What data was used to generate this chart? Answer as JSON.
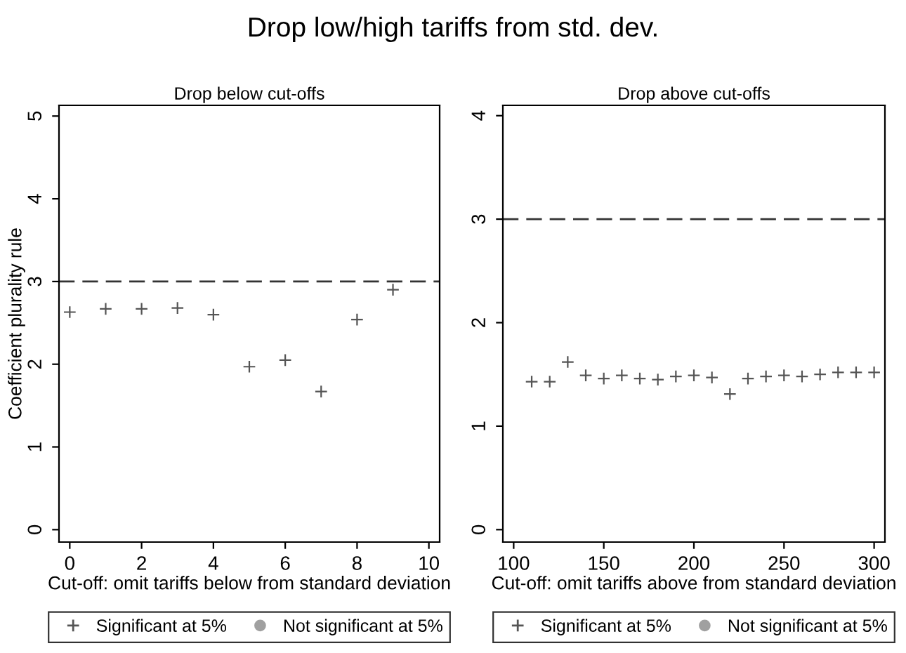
{
  "chart_data": [
    {
      "type": "other",
      "title": "Drop low/high tariffs from std. dev."
    },
    {
      "type": "scatter",
      "title": "Drop below cut-offs",
      "xlabel": "Cut-off: omit tariffs below from standard deviation",
      "ylabel": "Coefficient plurality rule",
      "xlim": [
        -0.3,
        10.3
      ],
      "xticks": [
        0,
        2,
        4,
        6,
        8,
        10
      ],
      "ylim": [
        -0.15,
        5.13
      ],
      "yticks": [
        0,
        1,
        2,
        3,
        4,
        5
      ],
      "grid": false,
      "legend": "bottom",
      "ref_lines": [
        {
          "axis": "y",
          "value": 3,
          "color": "#333333",
          "line_style": "dashed"
        }
      ],
      "series": [
        {
          "name": "Significant at 5%",
          "color": "#555555",
          "marker": "cross",
          "x": [
            0,
            1,
            2,
            3,
            4,
            5,
            6,
            7,
            8,
            9
          ],
          "values": [
            2.63,
            2.67,
            2.67,
            2.68,
            2.6,
            1.97,
            2.05,
            1.67,
            2.54,
            2.9
          ]
        },
        {
          "name": "Not significant at 5%",
          "color": "#a0a0a0",
          "marker": "circle"
        }
      ]
    },
    {
      "type": "scatter",
      "title": "Drop above cut-offs",
      "xlabel": "Cut-off: omit tariffs above from standard deviation",
      "xlim": [
        94,
        306
      ],
      "xticks": [
        100,
        150,
        200,
        250,
        300
      ],
      "ylim": [
        -0.12,
        4.1
      ],
      "yticks": [
        0,
        1,
        2,
        3,
        4
      ],
      "grid": false,
      "legend": "bottom",
      "ref_lines": [
        {
          "axis": "y",
          "value": 3,
          "color": "#333333",
          "line_style": "dashed"
        }
      ],
      "series": [
        {
          "name": "Significant at 5%",
          "color": "#555555",
          "marker": "cross",
          "x": [
            110,
            120,
            130,
            140,
            150,
            160,
            170,
            180,
            190,
            200,
            210,
            220,
            230,
            240,
            250,
            260,
            270,
            280,
            290,
            300
          ],
          "values": [
            1.43,
            1.43,
            1.62,
            1.49,
            1.46,
            1.49,
            1.46,
            1.45,
            1.48,
            1.49,
            1.47,
            1.31,
            1.46,
            1.48,
            1.49,
            1.48,
            1.5,
            1.52,
            1.52,
            1.52
          ]
        },
        {
          "name": "Not significant at 5%",
          "color": "#a0a0a0",
          "marker": "circle"
        }
      ]
    }
  ]
}
